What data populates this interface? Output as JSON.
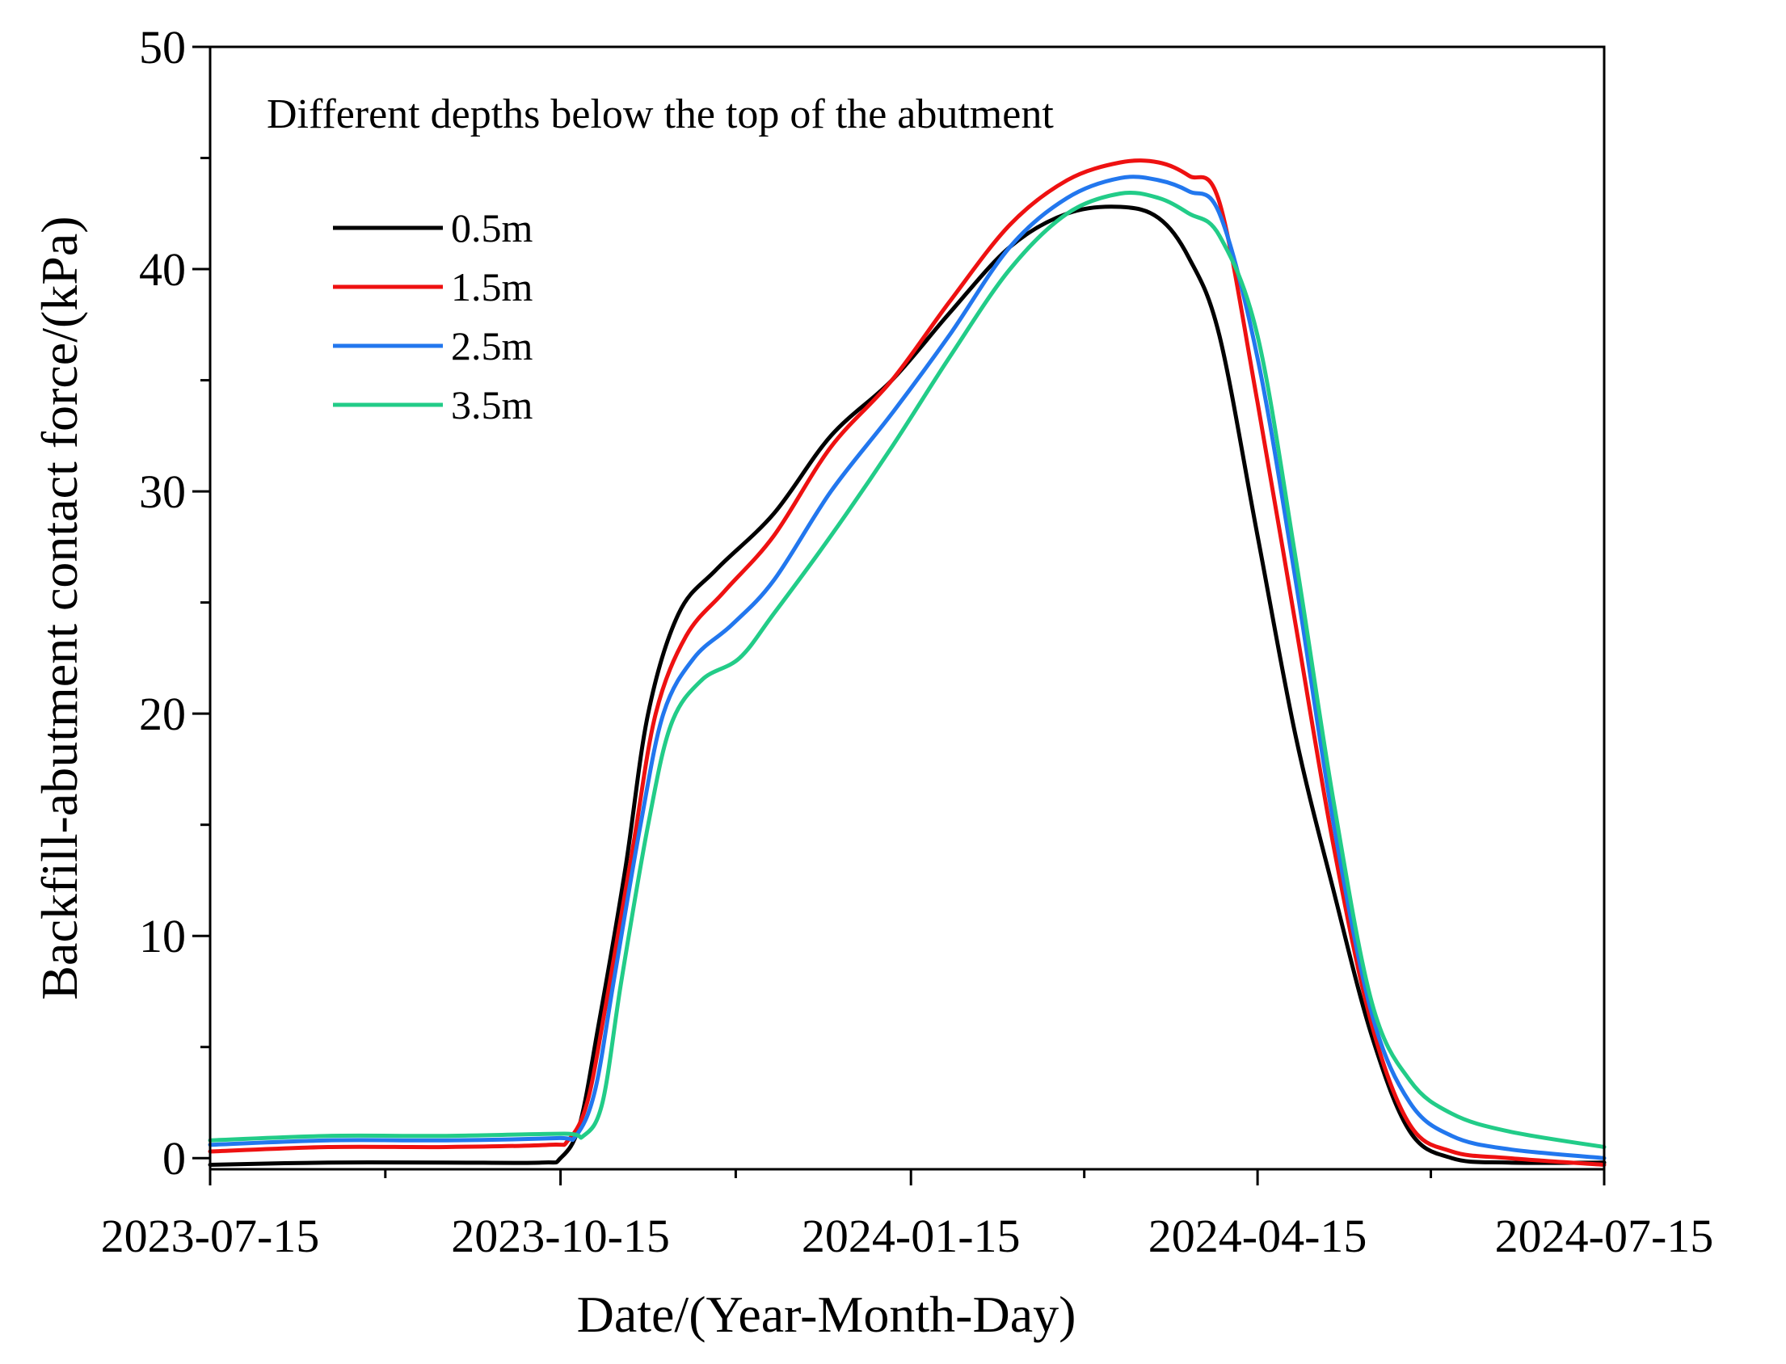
{
  "chart_data": {
    "type": "line",
    "title": "",
    "annotation": "Different depths below the top of the abutment",
    "xlabel": "Date/(Year-Month-Day)",
    "ylabel": "Backfill-abutment  contact  force/(kPa)",
    "x_domain": [
      "2023-07-15",
      "2024-07-15"
    ],
    "xticks": [
      "2023-07-15",
      "2023-10-15",
      "2024-01-15",
      "2024-04-15",
      "2024-07-15"
    ],
    "ylim": [
      -0.5,
      50
    ],
    "yticks": [
      0,
      10,
      20,
      30,
      40,
      50
    ],
    "ytick_labels": [
      "0",
      "10",
      "20",
      "30",
      "40",
      "50"
    ],
    "legend_placement": "upper-left",
    "series": [
      {
        "name": "0.5m",
        "color": "#000000",
        "x": [
          "2023-07-15",
          "2023-08-15",
          "2023-09-15",
          "2023-10-10",
          "2023-10-15",
          "2023-10-20",
          "2023-10-25",
          "2023-11-01",
          "2023-11-07",
          "2023-11-15",
          "2023-11-25",
          "2023-12-10",
          "2023-12-25",
          "2024-01-10",
          "2024-01-25",
          "2024-02-10",
          "2024-02-25",
          "2024-03-10",
          "2024-03-20",
          "2024-03-28",
          "2024-04-05",
          "2024-04-15",
          "2024-04-25",
          "2024-05-05",
          "2024-05-15",
          "2024-05-25",
          "2024-06-05",
          "2024-06-20",
          "2024-07-15"
        ],
        "values": [
          -0.3,
          -0.2,
          -0.2,
          -0.2,
          0.0,
          1.5,
          6.0,
          13.0,
          20.0,
          24.5,
          26.5,
          29.0,
          32.5,
          35.0,
          38.0,
          41.0,
          42.5,
          42.8,
          42.3,
          40.5,
          37.0,
          28.0,
          19.0,
          12.0,
          5.5,
          1.2,
          0.0,
          -0.2,
          -0.2
        ]
      },
      {
        "name": "1.5m",
        "color": "#ee1111",
        "x": [
          "2023-07-15",
          "2023-08-15",
          "2023-09-15",
          "2023-10-12",
          "2023-10-17",
          "2023-10-22",
          "2023-10-27",
          "2023-11-03",
          "2023-11-09",
          "2023-11-17",
          "2023-11-27",
          "2023-12-10",
          "2023-12-25",
          "2024-01-10",
          "2024-01-25",
          "2024-02-10",
          "2024-02-25",
          "2024-03-10",
          "2024-03-20",
          "2024-03-28",
          "2024-04-05",
          "2024-04-15",
          "2024-04-25",
          "2024-05-05",
          "2024-05-15",
          "2024-05-25",
          "2024-06-05",
          "2024-06-20",
          "2024-07-15"
        ],
        "values": [
          0.3,
          0.5,
          0.5,
          0.6,
          0.8,
          2.5,
          7.0,
          14.0,
          20.0,
          23.5,
          25.5,
          28.0,
          32.0,
          35.0,
          38.5,
          42.0,
          44.0,
          44.8,
          44.8,
          44.2,
          43.0,
          34.0,
          24.0,
          14.0,
          6.0,
          1.5,
          0.3,
          0.0,
          -0.3
        ]
      },
      {
        "name": "2.5m",
        "color": "#2277ee",
        "x": [
          "2023-07-15",
          "2023-08-15",
          "2023-09-15",
          "2023-10-14",
          "2023-10-19",
          "2023-10-24",
          "2023-10-29",
          "2023-11-05",
          "2023-11-11",
          "2023-11-19",
          "2023-11-29",
          "2023-12-10",
          "2023-12-25",
          "2024-01-10",
          "2024-01-25",
          "2024-02-10",
          "2024-02-25",
          "2024-03-10",
          "2024-03-20",
          "2024-03-28",
          "2024-04-05",
          "2024-04-15",
          "2024-04-25",
          "2024-05-05",
          "2024-05-15",
          "2024-05-25",
          "2024-06-05",
          "2024-06-20",
          "2024-07-15"
        ],
        "values": [
          0.6,
          0.8,
          0.8,
          0.9,
          1.0,
          3.0,
          8.0,
          15.0,
          20.0,
          22.5,
          24.0,
          26.0,
          30.0,
          33.5,
          37.0,
          41.0,
          43.2,
          44.1,
          44.0,
          43.5,
          42.5,
          36.0,
          26.0,
          15.0,
          6.5,
          2.5,
          1.0,
          0.4,
          0.0
        ]
      },
      {
        "name": "3.5m",
        "color": "#22cc88",
        "x": [
          "2023-07-15",
          "2023-08-15",
          "2023-09-15",
          "2023-10-16",
          "2023-10-21",
          "2023-10-26",
          "2023-10-31",
          "2023-11-07",
          "2023-11-13",
          "2023-11-21",
          "2023-12-01",
          "2023-12-10",
          "2023-12-25",
          "2024-01-10",
          "2024-01-25",
          "2024-02-10",
          "2024-02-25",
          "2024-03-10",
          "2024-03-20",
          "2024-03-28",
          "2024-04-05",
          "2024-04-15",
          "2024-04-25",
          "2024-05-05",
          "2024-05-15",
          "2024-05-25",
          "2024-06-05",
          "2024-06-20",
          "2024-07-15"
        ],
        "values": [
          0.8,
          1.0,
          1.0,
          1.1,
          1.0,
          2.5,
          8.0,
          15.0,
          19.5,
          21.5,
          22.5,
          24.5,
          28.0,
          32.0,
          36.0,
          40.0,
          42.5,
          43.4,
          43.2,
          42.5,
          41.5,
          37.0,
          27.0,
          16.0,
          7.0,
          3.5,
          2.0,
          1.2,
          0.5
        ]
      }
    ]
  }
}
